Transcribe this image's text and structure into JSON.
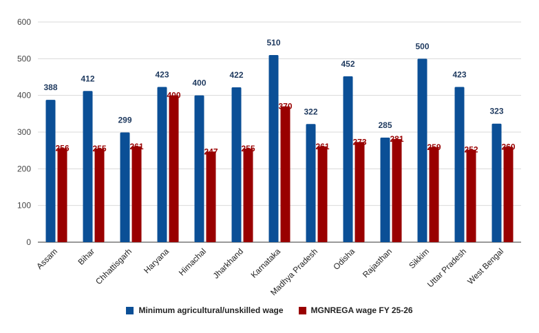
{
  "chart_data": {
    "type": "bar",
    "title": "",
    "xlabel": "",
    "ylabel": "",
    "ylim": [
      0,
      600
    ],
    "yticks": [
      0,
      100,
      200,
      300,
      400,
      500,
      600
    ],
    "grid": true,
    "legend_position": "bottom",
    "categories": [
      "Assam",
      "Bihar",
      "Chhattisgarh",
      "Haryana",
      "Himachal",
      "Jharkhand",
      "Karnataka",
      "Madhya Pradesh",
      "Odisha",
      "Rajasthan",
      "Sikkim",
      "Uttar Pradesh",
      "West Bengal"
    ],
    "series": [
      {
        "name": "Minimum agricultural/unskilled wage",
        "color": "#0b4f96",
        "values": [
          388,
          412,
          299,
          423,
          400,
          422,
          510,
          322,
          452,
          285,
          500,
          423,
          323
        ]
      },
      {
        "name": "MGNREGA wage FY 25-26",
        "color": "#990000",
        "values": [
          256,
          255,
          261,
          400,
          247,
          255,
          370,
          261,
          273,
          281,
          259,
          252,
          260
        ]
      }
    ]
  }
}
